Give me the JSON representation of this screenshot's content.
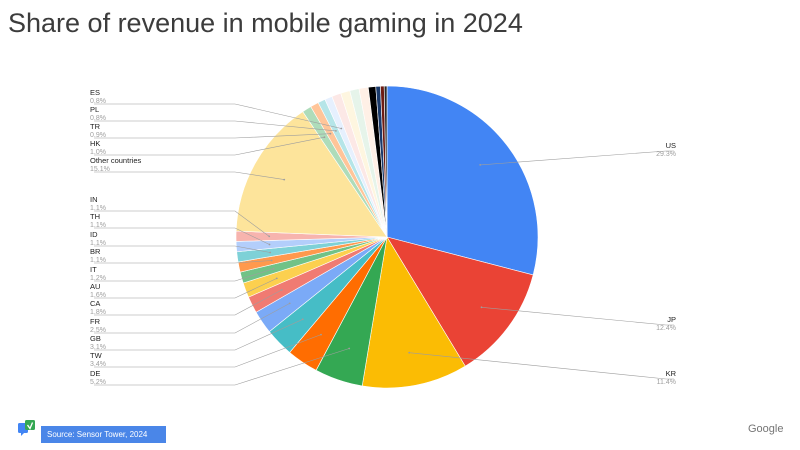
{
  "title": "Share of revenue in mobile gaming in 2024",
  "source": "Source: Sensor Tower, 2024",
  "brand": "Google",
  "chart_data": {
    "type": "pie",
    "title": "Share of revenue in mobile gaming in 2024",
    "unit": "%",
    "slices": [
      {
        "label": "US",
        "value": 29.3,
        "value_label": "29.3%",
        "color": "#4285f4"
      },
      {
        "label": "JP",
        "value": 12.4,
        "value_label": "12.4%",
        "color": "#ea4335"
      },
      {
        "label": "KR",
        "value": 11.4,
        "value_label": "11.4%",
        "color": "#fbbc04"
      },
      {
        "label": "DE",
        "value": 5.2,
        "value_label": "5.2%",
        "color": "#34a853"
      },
      {
        "label": "TW",
        "value": 3.4,
        "value_label": "3.4%",
        "color": "#ff6d01"
      },
      {
        "label": "GB",
        "value": 3.1,
        "value_label": "3.1%",
        "color": "#46bdc6"
      },
      {
        "label": "FR",
        "value": 2.5,
        "value_label": "2.5%",
        "color": "#7baaf7"
      },
      {
        "label": "CA",
        "value": 1.8,
        "value_label": "1.8%",
        "color": "#f07b72"
      },
      {
        "label": "AU",
        "value": 1.6,
        "value_label": "1.6%",
        "color": "#fcd04f"
      },
      {
        "label": "IT",
        "value": 1.2,
        "value_label": "1.2%",
        "color": "#71c287"
      },
      {
        "label": "BR",
        "value": 1.1,
        "value_label": "1.1%",
        "color": "#ff994d"
      },
      {
        "label": "ID",
        "value": 1.1,
        "value_label": "1.1%",
        "color": "#7ed1d7"
      },
      {
        "label": "TH",
        "value": 1.1,
        "value_label": "1.1%",
        "color": "#b3cefb"
      },
      {
        "label": "IN",
        "value": 1.1,
        "value_label": "1.1%",
        "color": "#f7b4ae"
      },
      {
        "label": "Other countries",
        "value": 15.1,
        "value_label": "15.1%",
        "color": "#fde49b"
      },
      {
        "label": "HK",
        "value": 1.0,
        "value_label": "1.0%",
        "color": "#aedcba"
      },
      {
        "label": "TR",
        "value": 0.9,
        "value_label": "0.9%",
        "color": "#ffc599"
      },
      {
        "label": "PL",
        "value": 0.8,
        "value_label": "0.8%",
        "color": "#b5e5e8"
      },
      {
        "label": "ES",
        "value": 0.8,
        "value_label": "0.8%",
        "color": "#e6f0fe"
      },
      {
        "value": 1.0,
        "color": "#fce8e6"
      },
      {
        "value": 1.0,
        "color": "#fef6e0"
      },
      {
        "value": 1.0,
        "color": "#e6f4ea"
      },
      {
        "value": 1.0,
        "color": "#fff0e6"
      },
      {
        "value": 0.8,
        "color": "#000000"
      },
      {
        "value": 0.5,
        "color": "#1a3a6b"
      },
      {
        "value": 0.4,
        "color": "#6e1c13"
      },
      {
        "value": 0.3,
        "color": "#2a2a2a"
      }
    ],
    "legend_placement": "labels beside the pie with leader lines"
  }
}
